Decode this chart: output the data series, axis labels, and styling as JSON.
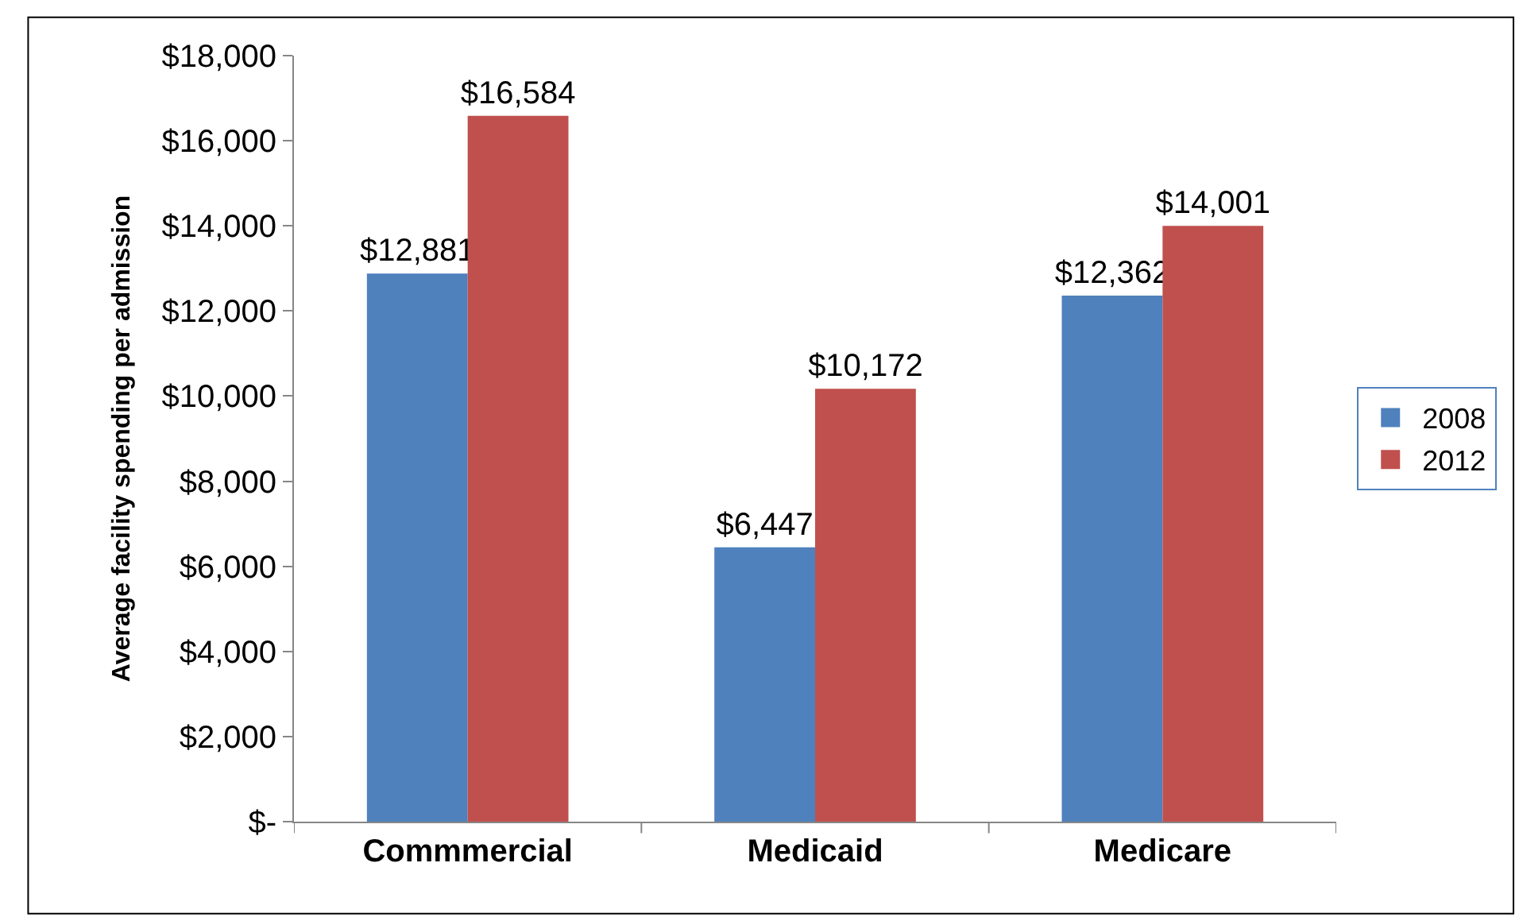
{
  "chart_data": {
    "type": "bar",
    "ylabel": "Average facility spending per admission",
    "categories": [
      "Commmercial",
      "Medicaid",
      "Medicare"
    ],
    "series": [
      {
        "name": "2008",
        "color": "#4f81bd",
        "values": [
          12881,
          6447,
          12362
        ],
        "value_labels": [
          "$12,881",
          "$6,447",
          "$12,362"
        ]
      },
      {
        "name": "2012",
        "color": "#c0504d",
        "values": [
          16584,
          10172,
          14001
        ],
        "value_labels": [
          "$16,584",
          "$10,172",
          "$14,001"
        ]
      }
    ],
    "ylim": [
      0,
      18000
    ],
    "yticks": [
      {
        "value": 0,
        "label": "$-"
      },
      {
        "value": 2000,
        "label": "$2,000"
      },
      {
        "value": 4000,
        "label": "$4,000"
      },
      {
        "value": 6000,
        "label": "$6,000"
      },
      {
        "value": 8000,
        "label": "$8,000"
      },
      {
        "value": 10000,
        "label": "$10,000"
      },
      {
        "value": 12000,
        "label": "$12,000"
      },
      {
        "value": 14000,
        "label": "$14,000"
      },
      {
        "value": 16000,
        "label": "$16,000"
      },
      {
        "value": 18000,
        "label": "$18,000"
      }
    ],
    "legend": "right"
  }
}
